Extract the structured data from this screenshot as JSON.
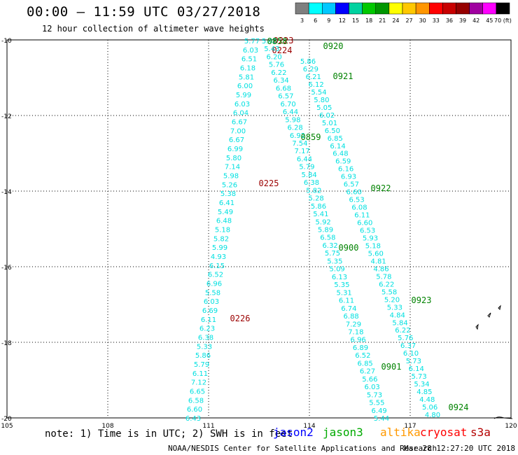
{
  "header": {
    "title": "00:00 – 11:59 UTC 03/27/2018",
    "subtitle": "12 hour collection of altimeter wave heights"
  },
  "colorbar": {
    "labels": [
      "3",
      "6",
      "9",
      "12",
      "15",
      "18",
      "21",
      "24",
      "27",
      "30",
      "33",
      "36",
      "39",
      "42",
      "45",
      "70 (ft)"
    ],
    "colors": [
      "#7f7f7f",
      "#00ffff",
      "#00c8ff",
      "#0000ff",
      "#00d2a0",
      "#00c800",
      "#009600",
      "#ffff00",
      "#ffc800",
      "#ff9600",
      "#ff0000",
      "#c80000",
      "#960000",
      "#a000a0",
      "#ff00ff",
      "#000000"
    ]
  },
  "chart_data": {
    "type": "map",
    "xlim": [
      105,
      120
    ],
    "ylim": [
      -20,
      -10
    ],
    "x_ticks": [
      "105",
      "108",
      "111",
      "114",
      "117",
      "120"
    ],
    "y_ticks": [
      "-10",
      "-12",
      "-14",
      "-16",
      "-18",
      "-20"
    ],
    "grid": true,
    "point_color": "#00e0e0",
    "tracks": [
      {
        "satellite": "cryosat",
        "color": "#9b0000",
        "times": [
          "0223",
          "0224",
          "0225",
          "0226"
        ],
        "values": [
          "5.77",
          "6.03",
          "6.51",
          "6.18",
          "5.81",
          "6.00",
          "5.99",
          "6.03",
          "6.04",
          "6.67",
          "7.00",
          "6.67",
          "6.99",
          "5.80",
          "7.14",
          "5.98",
          "5.26",
          "5.38",
          "6.41",
          "5.49",
          "6.48",
          "5.18",
          "5.82",
          "5.99",
          "4.93",
          "6.15",
          "6.52",
          "6.96",
          "5.58",
          "6.03",
          "6.69",
          "6.11",
          "6.23",
          "6.38",
          "5.33",
          "5.86",
          "5.79",
          "6.11",
          "7.12",
          "6.65",
          "6.58",
          "6.60",
          "6.43"
        ]
      },
      {
        "satellite": "jason3",
        "color": "#008200",
        "times": [
          "0858",
          "0859",
          "0900",
          "0901"
        ],
        "values": [
          "5.48",
          "5.43",
          "6.20",
          "5.76",
          "6.22",
          "6.34",
          "6.68",
          "6.57",
          "6.70",
          "6.44",
          "5.98",
          "6.28",
          "6.92",
          "7.54",
          "7.17",
          "6.44",
          "5.79",
          "5.84",
          "6.38",
          "5.82",
          "5.28",
          "5.86",
          "5.41",
          "5.92",
          "5.89",
          "6.58",
          "6.32",
          "5.75",
          "5.35",
          "5.09",
          "6.13",
          "5.35",
          "5.31",
          "6.11",
          "6.74",
          "6.88",
          "7.29",
          "7.18",
          "6.96",
          "6.89",
          "6.52",
          "6.85",
          "6.27",
          "5.66",
          "6.03",
          "5.73",
          "5.55",
          "6.49",
          "5.44"
        ]
      },
      {
        "satellite": "jason3",
        "color": "#008200",
        "times": [
          "0920",
          "0921",
          "0922",
          "0923",
          "0924"
        ],
        "values": [
          "5.86",
          "6.29",
          "6.21",
          "6.12",
          "5.54",
          "5.80",
          "5.05",
          "6.02",
          "5.01",
          "6.50",
          "6.85",
          "6.14",
          "6.48",
          "6.59",
          "6.16",
          "6.93",
          "6.57",
          "6.60",
          "6.53",
          "6.08",
          "6.11",
          "6.60",
          "6.53",
          "5.93",
          "5.18",
          "5.60",
          "4.81",
          "4.86",
          "5.78",
          "6.22",
          "5.58",
          "5.20",
          "5.33",
          "4.84",
          "5.84",
          "6.22",
          "5.76",
          "6.37",
          "6.10",
          "5.73",
          "6.14",
          "5.73",
          "5.34",
          "4.85",
          "4.48",
          "5.06",
          "4.80"
        ]
      }
    ]
  },
  "footer": {
    "note": "note: 1) Time is in UTC; 2) SWH is in feet",
    "satellites": [
      {
        "name": "jason2",
        "color": "#0000ff"
      },
      {
        "name": "jason3",
        "color": "#00aa00"
      },
      {
        "name": "altika",
        "color": "#ff9900"
      },
      {
        "name": "cryosat",
        "color": "#ff0000"
      },
      {
        "name": "s3a",
        "color": "#b40000"
      }
    ],
    "credit": "NOAA/NESDIS Center for Satellite Applications and Research",
    "generated": "Mar 28 12:27:20 UTC 2018"
  }
}
